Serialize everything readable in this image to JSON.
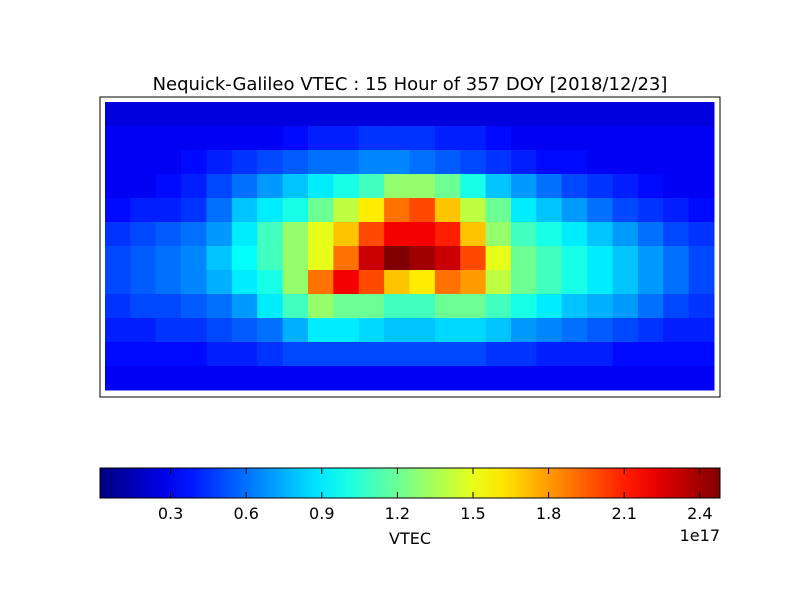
{
  "chart_data": {
    "type": "heatmap",
    "title": "Nequick-Galileo VTEC : 15 Hour of 357 DOY [2018/12/23]",
    "colormap": "jet",
    "xlim": [
      -180,
      180
    ],
    "ylim": [
      -90,
      90
    ],
    "clim": [
      0.02,
      2.48
    ],
    "cticks": [
      0.3,
      0.6,
      0.9,
      1.2,
      1.5,
      1.8,
      2.1,
      2.4
    ],
    "colorbar_label": "VTEC",
    "colorbar_offset": "1e17",
    "values": [
      [
        0.25,
        0.25,
        0.25,
        0.25,
        0.25,
        0.25,
        0.25,
        0.25,
        0.25,
        0.25,
        0.25,
        0.25,
        0.25,
        0.25,
        0.25,
        0.25,
        0.25,
        0.25,
        0.25,
        0.25,
        0.25,
        0.25,
        0.25,
        0.25
      ],
      [
        0.3,
        0.3,
        0.3,
        0.3,
        0.3,
        0.3,
        0.3,
        0.35,
        0.4,
        0.4,
        0.45,
        0.45,
        0.45,
        0.4,
        0.4,
        0.35,
        0.3,
        0.3,
        0.3,
        0.3,
        0.3,
        0.3,
        0.3,
        0.3
      ],
      [
        0.3,
        0.3,
        0.3,
        0.35,
        0.4,
        0.45,
        0.5,
        0.55,
        0.6,
        0.6,
        0.65,
        0.65,
        0.6,
        0.55,
        0.5,
        0.45,
        0.4,
        0.35,
        0.35,
        0.3,
        0.3,
        0.3,
        0.3,
        0.3
      ],
      [
        0.3,
        0.3,
        0.35,
        0.4,
        0.5,
        0.6,
        0.7,
        0.8,
        0.9,
        1.0,
        1.1,
        1.3,
        1.3,
        1.2,
        1.0,
        0.8,
        0.7,
        0.6,
        0.5,
        0.45,
        0.4,
        0.35,
        0.3,
        0.3
      ],
      [
        0.35,
        0.4,
        0.4,
        0.45,
        0.6,
        0.8,
        0.9,
        1.0,
        1.2,
        1.4,
        1.6,
        1.9,
        2.0,
        1.7,
        1.4,
        1.2,
        0.9,
        0.8,
        0.7,
        0.6,
        0.5,
        0.45,
        0.4,
        0.35
      ],
      [
        0.45,
        0.5,
        0.55,
        0.6,
        0.7,
        0.9,
        1.1,
        1.3,
        1.5,
        1.7,
        2.0,
        2.2,
        2.2,
        2.1,
        1.7,
        1.3,
        1.1,
        1.0,
        0.9,
        0.8,
        0.7,
        0.6,
        0.5,
        0.45
      ],
      [
        0.5,
        0.55,
        0.6,
        0.65,
        0.8,
        0.95,
        1.1,
        1.3,
        1.5,
        1.9,
        2.3,
        2.5,
        2.4,
        2.3,
        2.0,
        1.5,
        1.2,
        1.1,
        1.0,
        0.9,
        0.8,
        0.7,
        0.6,
        0.5
      ],
      [
        0.5,
        0.55,
        0.6,
        0.65,
        0.75,
        0.9,
        1.0,
        1.3,
        1.9,
        2.2,
        2.0,
        1.7,
        1.6,
        1.9,
        1.8,
        1.4,
        1.2,
        1.1,
        1.0,
        0.9,
        0.8,
        0.7,
        0.6,
        0.5
      ],
      [
        0.45,
        0.5,
        0.5,
        0.55,
        0.6,
        0.7,
        0.9,
        1.1,
        1.3,
        1.2,
        1.2,
        1.1,
        1.1,
        1.2,
        1.2,
        1.1,
        1.0,
        0.9,
        0.8,
        0.75,
        0.7,
        0.6,
        0.5,
        0.45
      ],
      [
        0.4,
        0.4,
        0.45,
        0.45,
        0.5,
        0.55,
        0.6,
        0.75,
        0.9,
        0.9,
        0.85,
        0.8,
        0.8,
        0.85,
        0.85,
        0.8,
        0.7,
        0.65,
        0.6,
        0.55,
        0.5,
        0.45,
        0.4,
        0.4
      ],
      [
        0.35,
        0.35,
        0.35,
        0.35,
        0.4,
        0.4,
        0.45,
        0.5,
        0.5,
        0.5,
        0.5,
        0.5,
        0.5,
        0.5,
        0.5,
        0.45,
        0.45,
        0.4,
        0.4,
        0.4,
        0.35,
        0.35,
        0.35,
        0.35
      ],
      [
        0.3,
        0.3,
        0.3,
        0.3,
        0.3,
        0.3,
        0.3,
        0.3,
        0.3,
        0.3,
        0.3,
        0.3,
        0.3,
        0.3,
        0.3,
        0.3,
        0.3,
        0.3,
        0.3,
        0.3,
        0.3,
        0.3,
        0.3,
        0.3
      ]
    ]
  }
}
